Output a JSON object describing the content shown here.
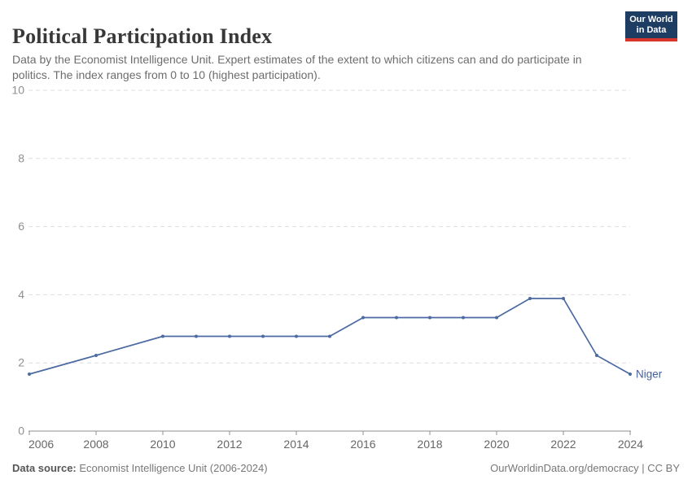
{
  "header": {
    "title": "Political Participation Index",
    "subtitle": "Data by the Economist Intelligence Unit. Expert estimates of the extent to which citizens can and do participate in politics. The index ranges from 0 to 10 (highest participation).",
    "logo": {
      "line1": "Our World",
      "line2": "in Data",
      "bg_color": "#1d3d63",
      "stripe_color": "#d7342a"
    }
  },
  "chart_data": {
    "type": "line",
    "title": "Political Participation Index",
    "xlabel": "",
    "ylabel": "",
    "xlim": [
      2006,
      2024
    ],
    "ylim": [
      0,
      10
    ],
    "x_ticks": [
      2006,
      2008,
      2010,
      2012,
      2014,
      2016,
      2018,
      2020,
      2022,
      2024
    ],
    "y_ticks": [
      0,
      2,
      4,
      6,
      8,
      10
    ],
    "grid": "horizontal-dashed",
    "legend_position": "end-of-line-label",
    "series": [
      {
        "name": "Niger",
        "color": "#4c6aa2",
        "label_color": "#44619a",
        "points": [
          {
            "x": 2006,
            "y": 1.67
          },
          {
            "x": 2008,
            "y": 2.22
          },
          {
            "x": 2010,
            "y": 2.78
          },
          {
            "x": 2011,
            "y": 2.78
          },
          {
            "x": 2012,
            "y": 2.78
          },
          {
            "x": 2013,
            "y": 2.78
          },
          {
            "x": 2014,
            "y": 2.78
          },
          {
            "x": 2015,
            "y": 2.78
          },
          {
            "x": 2016,
            "y": 3.33
          },
          {
            "x": 2017,
            "y": 3.33
          },
          {
            "x": 2018,
            "y": 3.33
          },
          {
            "x": 2019,
            "y": 3.33
          },
          {
            "x": 2020,
            "y": 3.33
          },
          {
            "x": 2021,
            "y": 3.89
          },
          {
            "x": 2022,
            "y": 3.89
          },
          {
            "x": 2023,
            "y": 2.22
          },
          {
            "x": 2024,
            "y": 1.67
          }
        ]
      }
    ],
    "axis_colors": {
      "y_tick_label": "#8f8f8f",
      "x_tick_label": "#666666",
      "gridline": "#dedede",
      "baseline": "#8f8f8f"
    }
  },
  "footer": {
    "datasource_label": "Data source:",
    "datasource_value": " Economist Intelligence Unit (2006-2024)",
    "attribution": "OurWorldinData.org/democracy | CC BY"
  }
}
